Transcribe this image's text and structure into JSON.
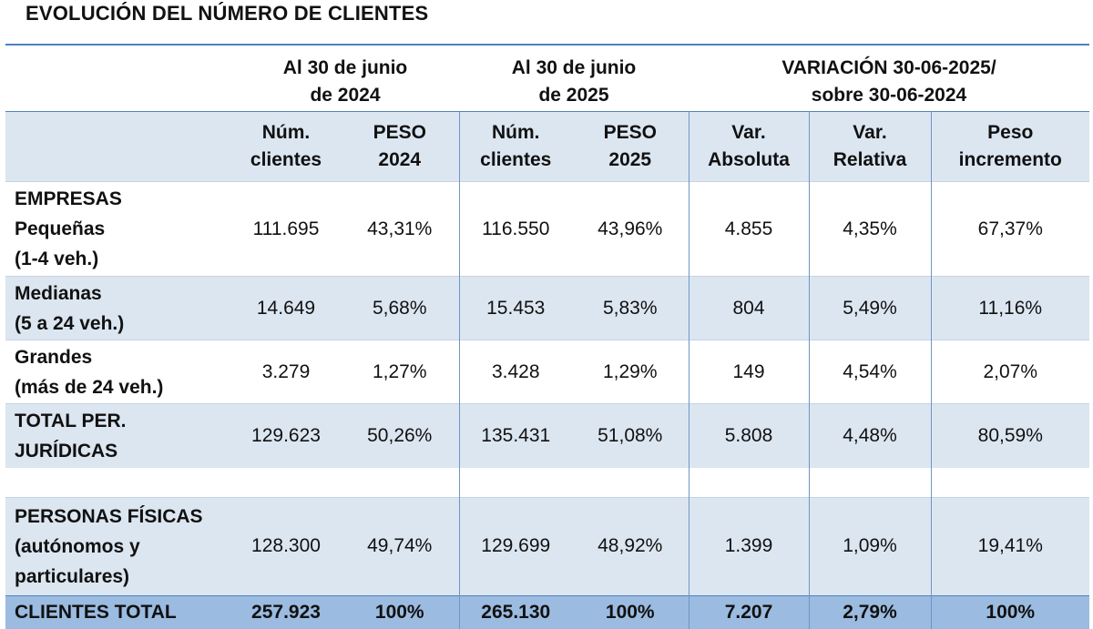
{
  "title": "EVOLUCIÓN DEL NÚMERO DE CLIENTES",
  "group_headers": {
    "g2024_l1": "Al 30 de junio",
    "g2024_l2": "de 2024",
    "g2025_l1": "Al 30 de junio",
    "g2025_l2": "de 2025",
    "gvar_l1": "VARIACIÓN 30-06-2025/",
    "gvar_l2": "sobre 30-06-2024"
  },
  "columns": [
    {
      "l1": "Núm.",
      "l2": "clientes"
    },
    {
      "l1": "PESO",
      "l2": "2024"
    },
    {
      "l1": "Núm.",
      "l2": "clientes"
    },
    {
      "l1": "PESO",
      "l2": "2025"
    },
    {
      "l1": "Var.",
      "l2": "Absoluta"
    },
    {
      "l1": "Var.",
      "l2": "Relativa"
    },
    {
      "l1": "Peso",
      "l2": "incremento"
    }
  ],
  "rows": [
    {
      "label": [
        "EMPRESAS",
        "Pequeñas",
        "(1-4 veh.)"
      ],
      "values": [
        "111.695",
        "43,31%",
        "116.550",
        "43,96%",
        "4.855",
        "4,35%",
        "67,37%"
      ]
    },
    {
      "label": [
        "Medianas",
        "(5 a 24 veh.)"
      ],
      "values": [
        "14.649",
        "5,68%",
        "15.453",
        "5,83%",
        "804",
        "5,49%",
        "11,16%"
      ]
    },
    {
      "label": [
        "Grandes",
        "(más de 24 veh.)"
      ],
      "values": [
        "3.279",
        "1,27%",
        "3.428",
        "1,29%",
        "149",
        "4,54%",
        "2,07%"
      ]
    },
    {
      "label": [
        "TOTAL PER.",
        "JURÍDICAS"
      ],
      "values": [
        "129.623",
        "50,26%",
        "135.431",
        "51,08%",
        "5.808",
        "4,48%",
        "80,59%"
      ]
    },
    {
      "label": [
        "PERSONAS FÍSICAS",
        "(autónomos y",
        "particulares)"
      ],
      "values": [
        "128.300",
        "49,74%",
        "129.699",
        "48,92%",
        "1.399",
        "1,09%",
        "19,41%"
      ]
    }
  ],
  "total": {
    "label": "CLIENTES TOTAL",
    "values": [
      "257.923",
      "100%",
      "265.130",
      "100%",
      "7.207",
      "2,79%",
      "100%"
    ]
  },
  "colors": {
    "header_band": "#dce6f1",
    "total_band": "#9bbbe0",
    "rule": "#4f81bd"
  }
}
